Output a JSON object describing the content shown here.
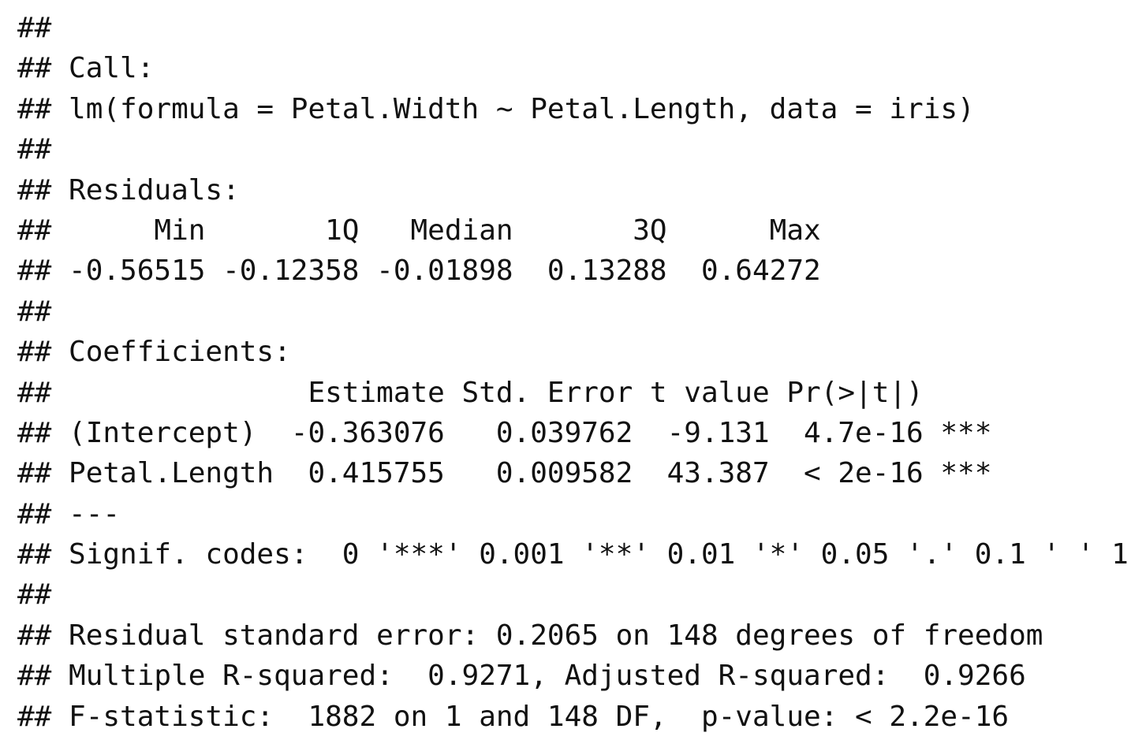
{
  "console_output": {
    "lines": [
      "##",
      "## Call:",
      "## lm(formula = Petal.Width ~ Petal.Length, data = iris)",
      "##",
      "## Residuals:",
      "##      Min       1Q   Median       3Q      Max",
      "## -0.56515 -0.12358 -0.01898  0.13288  0.64272",
      "##",
      "## Coefficients:",
      "##               Estimate Std. Error t value Pr(>|t|)",
      "## (Intercept)  -0.363076   0.039762  -9.131  4.7e-16 ***",
      "## Petal.Length  0.415755   0.009582  43.387  < 2e-16 ***",
      "## ---",
      "## Signif. codes:  0 '***' 0.001 '**' 0.01 '*' 0.05 '.' 0.1 ' ' 1",
      "##",
      "## Residual standard error: 0.2065 on 148 degrees of freedom",
      "## Multiple R-squared:  0.9271, Adjusted R-squared:  0.9266",
      "## F-statistic:  1882 on 1 and 148 DF,  p-value: < 2.2e-16"
    ]
  }
}
